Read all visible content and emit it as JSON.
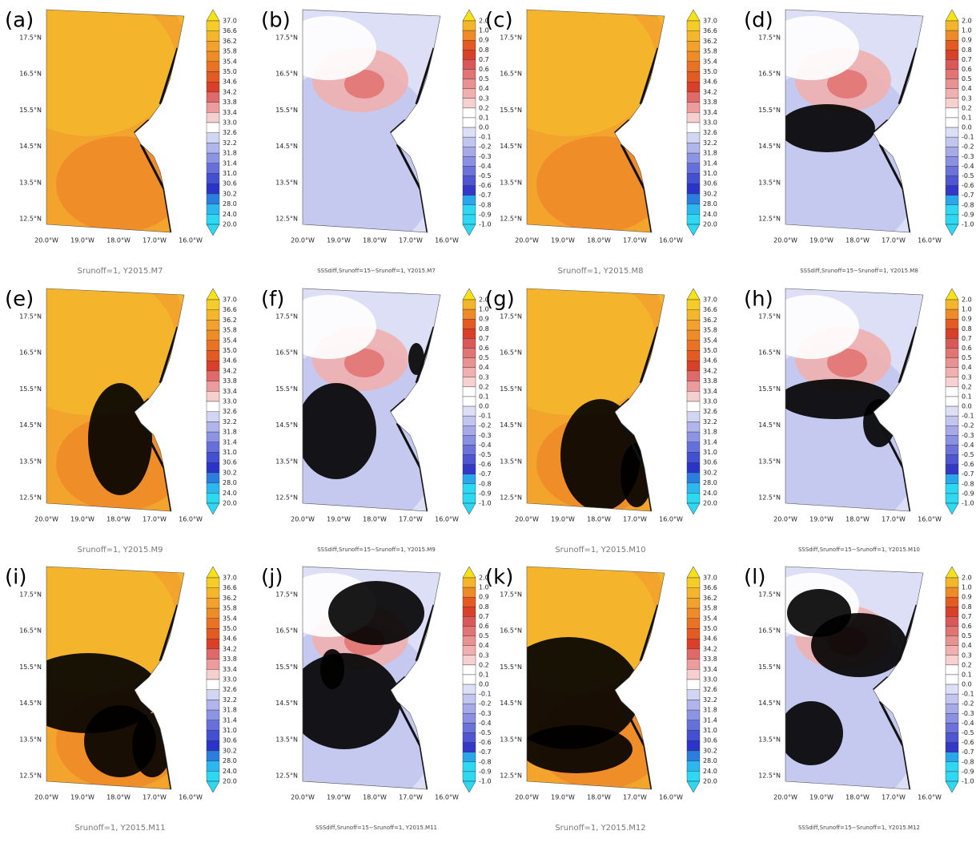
{
  "lat_ticks": [
    "17.5°N",
    "16.5°N",
    "15.5°N",
    "14.5°N",
    "13.5°N",
    "12.5°N"
  ],
  "lon_ticks": [
    "20.0°W",
    "19.0°W",
    "18.0°W",
    "17.0°W",
    "16.0°W"
  ],
  "salinity_colorbar": [
    "37.0",
    "36.6",
    "36.2",
    "35.8",
    "35.4",
    "35.0",
    "34.6",
    "34.2",
    "33.8",
    "33.4",
    "33.0",
    "32.6",
    "32.2",
    "31.8",
    "31.4",
    "31.0",
    "30.6",
    "30.2",
    "28.0",
    "24.0",
    "20.0"
  ],
  "diff_colorbar": [
    "2.0",
    "1.0",
    "0.9",
    "0.8",
    "0.7",
    "0.6",
    "0.5",
    "0.4",
    "0.3",
    "0.2",
    "0.1",
    "0.0",
    "-0.1",
    "-0.2",
    "-0.3",
    "-0.4",
    "-0.5",
    "-0.6",
    "-0.7",
    "-0.8",
    "-0.9",
    "-1.0"
  ],
  "panels": [
    {
      "label": "(a)",
      "kind": "salinity",
      "caption": "Srunoff=1, Y2015.M7"
    },
    {
      "label": "(b)",
      "kind": "diff",
      "caption": "SSSdiff,Srunoff=15−Srunoff=1, Y2015.M7"
    },
    {
      "label": "(c)",
      "kind": "salinity",
      "caption": "Srunoff=1, Y2015.M8"
    },
    {
      "label": "(d)",
      "kind": "diff",
      "caption": "SSSdiff,Srunoff=15−Srunoff=1, Y2015.M8"
    },
    {
      "label": "(e)",
      "kind": "salinity",
      "caption": "Srunoff=1, Y2015.M9"
    },
    {
      "label": "(f)",
      "kind": "diff",
      "caption": "SSSdiff,Srunoff=15−Srunoff=1, Y2015.M9"
    },
    {
      "label": "(g)",
      "kind": "salinity",
      "caption": "Srunoff=1, Y2015.M10"
    },
    {
      "label": "(h)",
      "kind": "diff",
      "caption": "SSSdiff,Srunoff=15−Srunoff=1, Y2015.M10"
    },
    {
      "label": "(i)",
      "kind": "salinity",
      "caption": "Srunoff=1, Y2015.M11"
    },
    {
      "label": "(j)",
      "kind": "diff",
      "caption": "SSSdiff,Srunoff=15−Srunoff=1, Y2015.M11"
    },
    {
      "label": "(k)",
      "kind": "salinity",
      "caption": "Srunoff=1, Y2015.M12"
    },
    {
      "label": "(l)",
      "kind": "diff",
      "caption": "SSSdiff,Srunoff=15−Srunoff=1, Y2015.M12"
    }
  ]
}
